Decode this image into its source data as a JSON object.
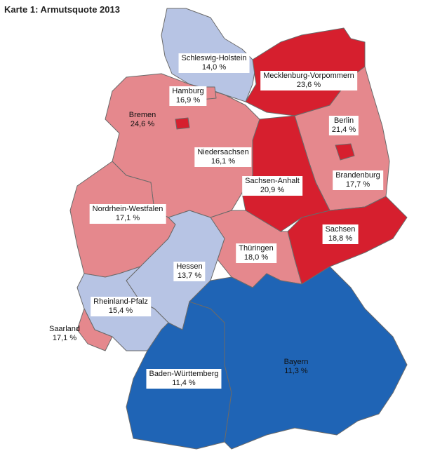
{
  "title": "Karte 1: Armutsquote 2013",
  "regions": [
    {
      "name": "Schleswig-Holstein",
      "value": 14.0,
      "value_label": "14,0 %",
      "color": "#b7c4e4"
    },
    {
      "name": "Mecklenburg-Vorpommern",
      "value": 23.6,
      "value_label": "23,6 %",
      "color": "#d61f2e"
    },
    {
      "name": "Hamburg",
      "value": 16.9,
      "value_label": "16,9 %",
      "color": "#e5888d"
    },
    {
      "name": "Bremen",
      "value": 24.6,
      "value_label": "24,6 %",
      "color": "#d61f2e"
    },
    {
      "name": "Niedersachsen",
      "value": 16.1,
      "value_label": "16,1 %",
      "color": "#e5888d"
    },
    {
      "name": "Brandenburg",
      "value": 17.7,
      "value_label": "17,7 %",
      "color": "#e5888d"
    },
    {
      "name": "Sachsen-Anhalt",
      "value": 20.9,
      "value_label": "20,9 %",
      "color": "#d61f2e"
    },
    {
      "name": "Berlin",
      "value": 21.4,
      "value_label": "21,4 %",
      "color": "#d61f2e"
    },
    {
      "name": "Nordrhein-Westfalen",
      "value": 17.1,
      "value_label": "17,1 %",
      "color": "#e5888d"
    },
    {
      "name": "Sachsen",
      "value": 18.8,
      "value_label": "18,8 %",
      "color": "#d61f2e"
    },
    {
      "name": "Thüringen",
      "value": 18.0,
      "value_label": "18,0 %",
      "color": "#e5888d"
    },
    {
      "name": "Hessen",
      "value": 13.7,
      "value_label": "13,7 %",
      "color": "#b7c4e4"
    },
    {
      "name": "Rheinland-Pfalz",
      "value": 15.4,
      "value_label": "15,4 %",
      "color": "#b7c4e4"
    },
    {
      "name": "Saarland",
      "value": 17.1,
      "value_label": "17,1 %",
      "color": "#e5888d"
    },
    {
      "name": "Baden-Württemberg",
      "value": 11.4,
      "value_label": "11,4 %",
      "color": "#1f64b5"
    },
    {
      "name": "Bayern",
      "value": 11.3,
      "value_label": "11,3 %",
      "color": "#1f64b5"
    }
  ]
}
